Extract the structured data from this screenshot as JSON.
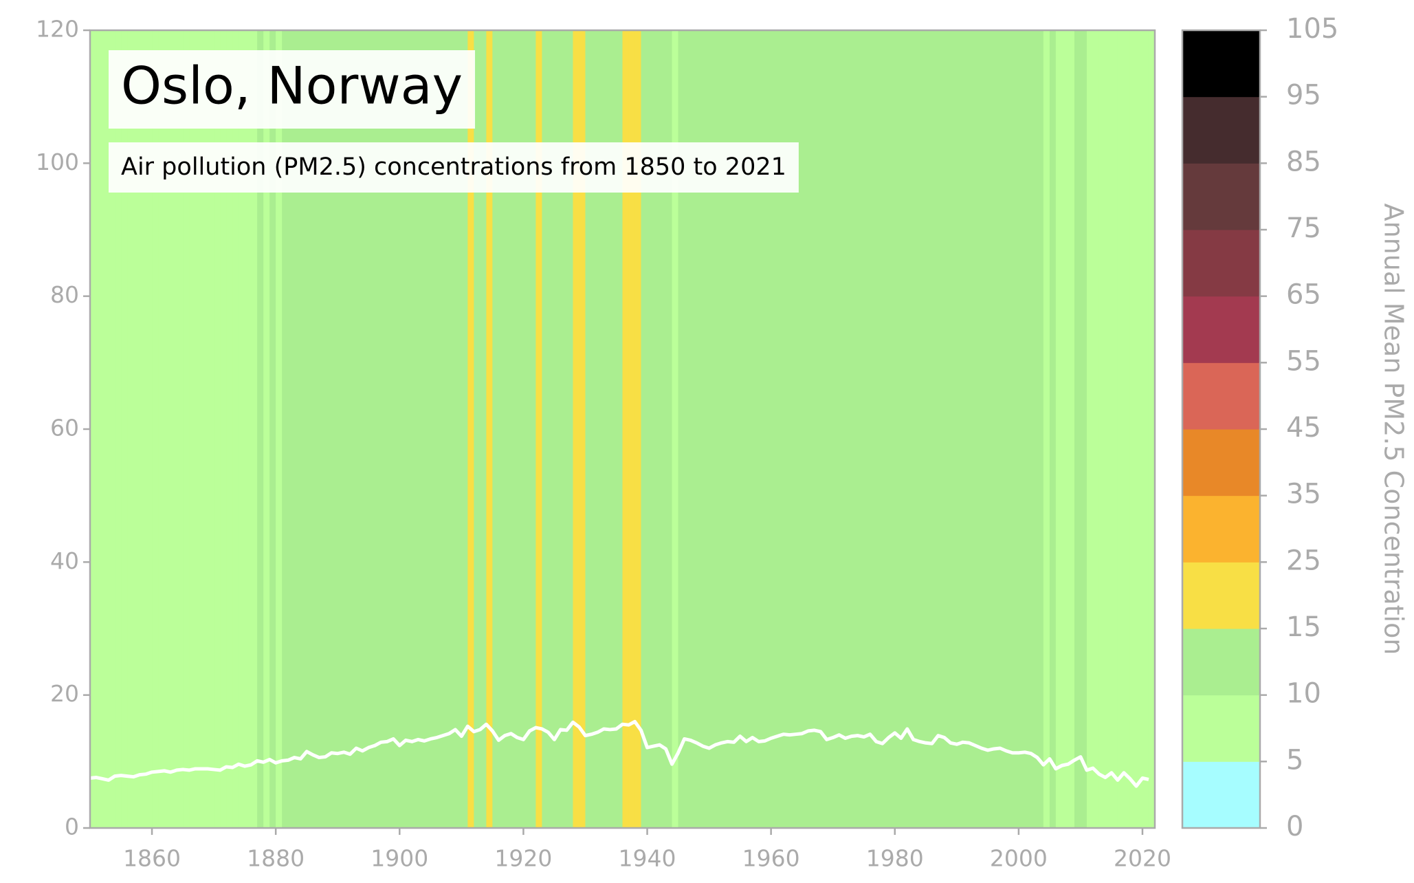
{
  "chart_data": {
    "type": "warming-stripes-line",
    "title": "Oslo, Norway",
    "subtitle": "Air pollution (PM2.5) concentrations from 1850 to 2021",
    "colorbar_label": "Annual Mean PM2.5 Concentration",
    "line_color": "#ffffff",
    "xlim": [
      1850,
      2022
    ],
    "ylim": [
      0,
      120
    ],
    "xticks": [
      1860,
      1880,
      1900,
      1920,
      1940,
      1960,
      1980,
      2000,
      2020
    ],
    "yticks": [
      0,
      20,
      40,
      60,
      80,
      100,
      120
    ],
    "colorbar_bounds": [
      0,
      5,
      10,
      15,
      25,
      35,
      45,
      55,
      65,
      75,
      85,
      95,
      105
    ],
    "colorbar_colors": [
      "#a6fdff",
      "#bbff99",
      "#aaee90",
      "#f8df45",
      "#fbb32f",
      "#e88828",
      "#da6657",
      "#a33a50",
      "#853a44",
      "#653a3c",
      "#452c2e",
      "#000000"
    ],
    "x": [
      1850,
      1851,
      1852,
      1853,
      1854,
      1855,
      1856,
      1857,
      1858,
      1859,
      1860,
      1861,
      1862,
      1863,
      1864,
      1865,
      1866,
      1867,
      1868,
      1869,
      1870,
      1871,
      1872,
      1873,
      1874,
      1875,
      1876,
      1877,
      1878,
      1879,
      1880,
      1881,
      1882,
      1883,
      1884,
      1885,
      1886,
      1887,
      1888,
      1889,
      1890,
      1891,
      1892,
      1893,
      1894,
      1895,
      1896,
      1897,
      1898,
      1899,
      1900,
      1901,
      1902,
      1903,
      1904,
      1905,
      1906,
      1907,
      1908,
      1909,
      1910,
      1911,
      1912,
      1913,
      1914,
      1915,
      1916,
      1917,
      1918,
      1919,
      1920,
      1921,
      1922,
      1923,
      1924,
      1925,
      1926,
      1927,
      1928,
      1929,
      1930,
      1931,
      1932,
      1933,
      1934,
      1935,
      1936,
      1937,
      1938,
      1939,
      1940,
      1941,
      1942,
      1943,
      1944,
      1945,
      1946,
      1947,
      1948,
      1949,
      1950,
      1951,
      1952,
      1953,
      1954,
      1955,
      1956,
      1957,
      1958,
      1959,
      1960,
      1961,
      1962,
      1963,
      1964,
      1965,
      1966,
      1967,
      1968,
      1969,
      1970,
      1971,
      1972,
      1973,
      1974,
      1975,
      1976,
      1977,
      1978,
      1979,
      1980,
      1981,
      1982,
      1983,
      1984,
      1985,
      1986,
      1987,
      1988,
      1989,
      1990,
      1991,
      1992,
      1993,
      1994,
      1995,
      1996,
      1997,
      1998,
      1999,
      2000,
      2001,
      2002,
      2003,
      2004,
      2005,
      2006,
      2007,
      2008,
      2009,
      2010,
      2011,
      2012,
      2013,
      2014,
      2015,
      2016,
      2017,
      2018,
      2019,
      2020,
      2021
    ],
    "values": [
      7.5,
      7.6,
      7.4,
      7.2,
      7.8,
      7.9,
      7.8,
      7.7,
      8.0,
      8.1,
      8.4,
      8.5,
      8.6,
      8.4,
      8.7,
      8.8,
      8.7,
      8.9,
      8.9,
      8.9,
      8.8,
      8.7,
      9.2,
      9.1,
      9.6,
      9.3,
      9.5,
      10.1,
      9.9,
      10.3,
      9.8,
      10.1,
      10.2,
      10.6,
      10.4,
      11.5,
      11.0,
      10.6,
      10.7,
      11.3,
      11.2,
      11.4,
      11.1,
      12.0,
      11.6,
      12.1,
      12.4,
      12.9,
      13.0,
      13.4,
      12.4,
      13.2,
      13.0,
      13.3,
      13.1,
      13.4,
      13.6,
      13.9,
      14.2,
      14.8,
      13.8,
      15.3,
      14.5,
      14.8,
      15.6,
      14.6,
      13.2,
      13.9,
      14.2,
      13.6,
      13.3,
      14.6,
      15.1,
      14.9,
      14.4,
      13.3,
      14.8,
      14.7,
      15.9,
      15.2,
      13.9,
      14.1,
      14.4,
      14.9,
      14.8,
      14.9,
      15.6,
      15.5,
      16.0,
      14.7,
      12.1,
      12.3,
      12.5,
      11.9,
      9.6,
      11.3,
      13.4,
      13.2,
      12.8,
      12.3,
      12.0,
      12.5,
      12.8,
      13.0,
      12.9,
      13.8,
      13.0,
      13.6,
      13.0,
      13.1,
      13.5,
      13.8,
      14.1,
      14.0,
      14.1,
      14.2,
      14.6,
      14.7,
      14.5,
      13.3,
      13.6,
      14.0,
      13.5,
      13.8,
      13.9,
      13.7,
      14.1,
      13.0,
      12.7,
      13.6,
      14.3,
      13.5,
      14.9,
      13.3,
      13.0,
      12.8,
      12.7,
      13.9,
      13.6,
      12.8,
      12.6,
      12.9,
      12.8,
      12.4,
      12.0,
      11.7,
      11.9,
      12.0,
      11.6,
      11.3,
      11.3,
      11.4,
      11.2,
      10.6,
      9.5,
      10.4,
      8.9,
      9.4,
      9.6,
      10.2,
      10.7,
      8.7,
      9.0,
      8.1,
      7.6,
      8.3,
      7.2,
      8.3,
      7.4,
      6.3,
      7.5,
      7.3
    ]
  }
}
